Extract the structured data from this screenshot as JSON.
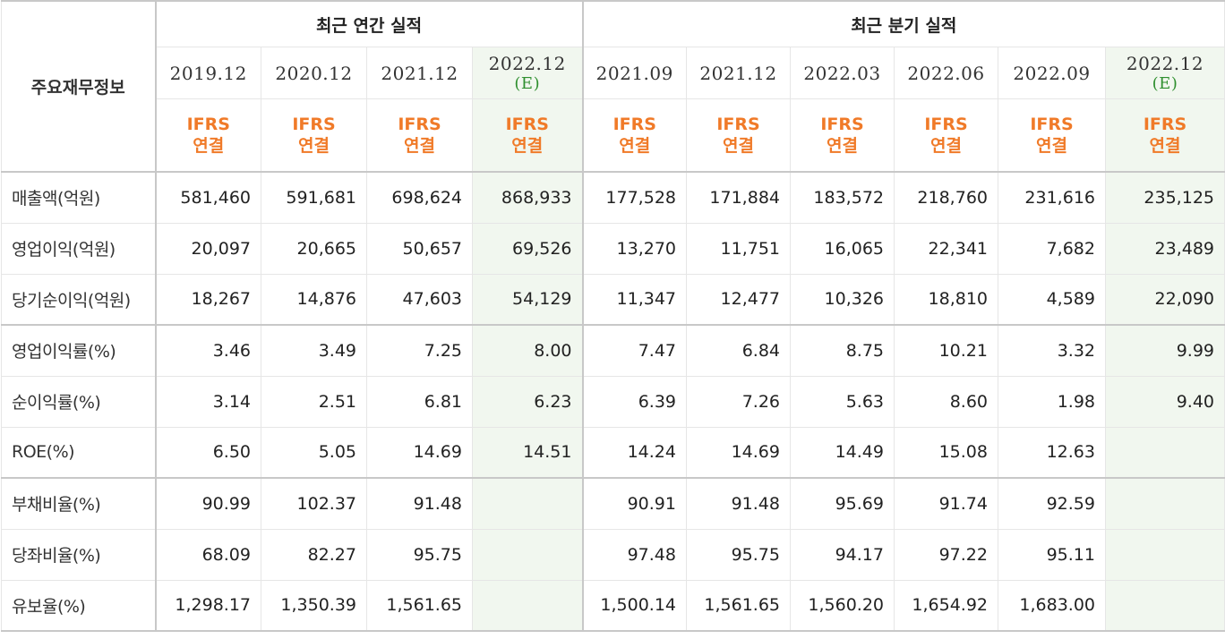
{
  "table": {
    "corner_label": "주요재무정보",
    "annual_title": "최근 연간 실적",
    "quarter_title": "최근 분기 실적",
    "annual_periods": [
      {
        "date": "2019.12",
        "est": "",
        "ifrs1": "IFRS",
        "ifrs2": "연결"
      },
      {
        "date": "2020.12",
        "est": "",
        "ifrs1": "IFRS",
        "ifrs2": "연결"
      },
      {
        "date": "2021.12",
        "est": "",
        "ifrs1": "IFRS",
        "ifrs2": "연결"
      },
      {
        "date": "2022.12",
        "est": "(E)",
        "ifrs1": "IFRS",
        "ifrs2": "연결"
      }
    ],
    "quarter_periods": [
      {
        "date": "2021.09",
        "est": "",
        "ifrs1": "IFRS",
        "ifrs2": "연결"
      },
      {
        "date": "2021.12",
        "est": "",
        "ifrs1": "IFRS",
        "ifrs2": "연결"
      },
      {
        "date": "2022.03",
        "est": "",
        "ifrs1": "IFRS",
        "ifrs2": "연결"
      },
      {
        "date": "2022.06",
        "est": "",
        "ifrs1": "IFRS",
        "ifrs2": "연결"
      },
      {
        "date": "2022.09",
        "est": "",
        "ifrs1": "IFRS",
        "ifrs2": "연결"
      },
      {
        "date": "2022.12",
        "est": "(E)",
        "ifrs1": "IFRS",
        "ifrs2": "연결"
      }
    ],
    "rows": [
      {
        "label": "매출액(억원)",
        "annual": [
          "581,460",
          "591,681",
          "698,624",
          "868,933"
        ],
        "quarter": [
          "177,528",
          "171,884",
          "183,572",
          "218,760",
          "231,616",
          "235,125"
        ]
      },
      {
        "label": "영업이익(억원)",
        "annual": [
          "20,097",
          "20,665",
          "50,657",
          "69,526"
        ],
        "quarter": [
          "13,270",
          "11,751",
          "16,065",
          "22,341",
          "7,682",
          "23,489"
        ]
      },
      {
        "label": "당기순이익(억원)",
        "annual": [
          "18,267",
          "14,876",
          "47,603",
          "54,129"
        ],
        "quarter": [
          "11,347",
          "12,477",
          "10,326",
          "18,810",
          "4,589",
          "22,090"
        ]
      },
      {
        "label": "영업이익률(%)",
        "annual": [
          "3.46",
          "3.49",
          "7.25",
          "8.00"
        ],
        "quarter": [
          "7.47",
          "6.84",
          "8.75",
          "10.21",
          "3.32",
          "9.99"
        ]
      },
      {
        "label": "순이익률(%)",
        "annual": [
          "3.14",
          "2.51",
          "6.81",
          "6.23"
        ],
        "quarter": [
          "6.39",
          "7.26",
          "5.63",
          "8.60",
          "1.98",
          "9.40"
        ]
      },
      {
        "label": "ROE(%)",
        "annual": [
          "6.50",
          "5.05",
          "14.69",
          "14.51"
        ],
        "quarter": [
          "14.24",
          "14.69",
          "14.49",
          "15.08",
          "12.63",
          ""
        ]
      },
      {
        "label": "부채비율(%)",
        "annual": [
          "90.99",
          "102.37",
          "91.48",
          ""
        ],
        "quarter": [
          "90.91",
          "91.48",
          "95.69",
          "91.74",
          "92.59",
          ""
        ]
      },
      {
        "label": "당좌비율(%)",
        "annual": [
          "68.09",
          "82.27",
          "95.75",
          ""
        ],
        "quarter": [
          "97.48",
          "95.75",
          "94.17",
          "97.22",
          "95.11",
          ""
        ]
      },
      {
        "label": "유보율(%)",
        "annual": [
          "1,298.17",
          "1,350.39",
          "1,561.65",
          ""
        ],
        "quarter": [
          "1,500.14",
          "1,561.65",
          "1,560.20",
          "1,654.92",
          "1,683.00",
          ""
        ]
      }
    ]
  },
  "colors": {
    "ifrs_text": "#f07a28",
    "estimate_text": "#2f8f2f",
    "estimate_bg": "#f1f7ef",
    "border": "#e6e6e6"
  }
}
